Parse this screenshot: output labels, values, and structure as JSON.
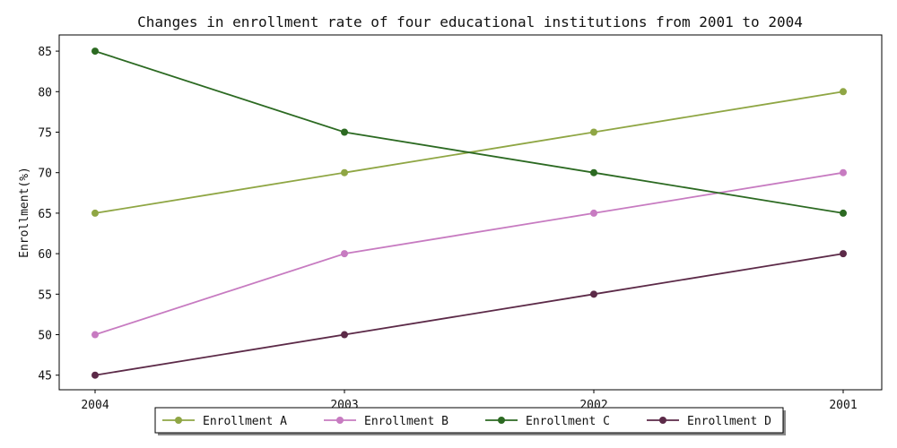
{
  "chart_data": {
    "type": "line",
    "title": "Changes in enrollment rate of four educational institutions from 2001 to 2004",
    "xlabel": "",
    "ylabel": "Enrollment(%)",
    "categories": [
      "2004",
      "2003",
      "2002",
      "2001"
    ],
    "ylim": [
      43.2,
      87
    ],
    "yticks": [
      45,
      50,
      55,
      60,
      65,
      70,
      75,
      80,
      85
    ],
    "grid": false,
    "legend_position": "bottom-center",
    "series": [
      {
        "name": "Enrollment A",
        "color": "#8fa644",
        "values": [
          65,
          70,
          75,
          80
        ]
      },
      {
        "name": "Enrollment B",
        "color": "#c77bc1",
        "values": [
          50,
          60,
          65,
          70
        ]
      },
      {
        "name": "Enrollment C",
        "color": "#2c6a22",
        "values": [
          85,
          75,
          70,
          65
        ]
      },
      {
        "name": "Enrollment D",
        "color": "#5c2a48",
        "values": [
          45,
          50,
          55,
          60
        ]
      }
    ]
  }
}
